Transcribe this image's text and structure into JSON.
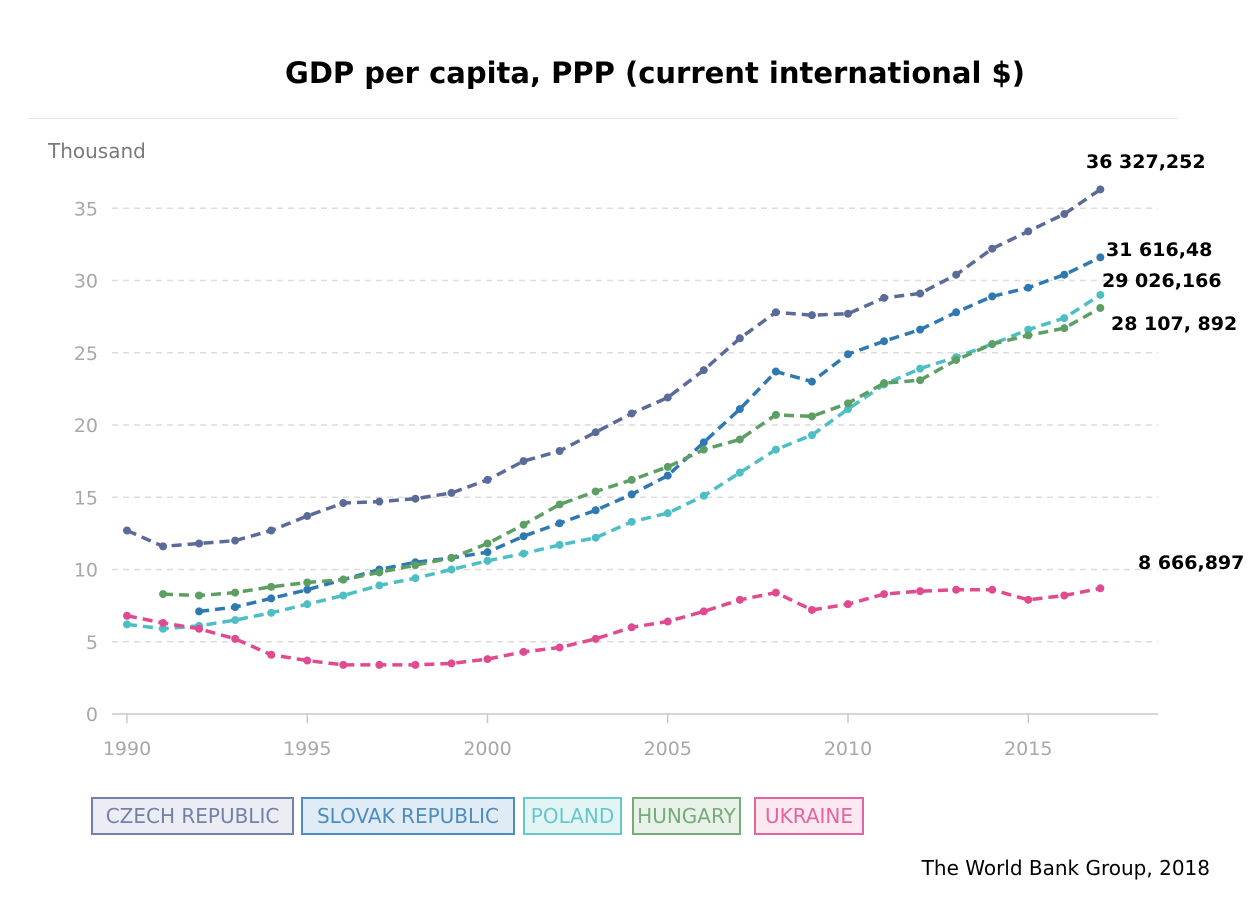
{
  "chart_data": {
    "type": "line",
    "title": "GDP per capita, PPP (current international $)",
    "ylabel": "Thousand",
    "xlabel": "",
    "ylim": [
      0,
      38
    ],
    "xlim": [
      1990,
      2018
    ],
    "y_ticks": [
      "0",
      "5",
      "10",
      "15",
      "20",
      "25",
      "30",
      "35"
    ],
    "x_ticks": [
      "1990",
      "1995",
      "2000",
      "2005",
      "2010",
      "2015"
    ],
    "grid": "horizontal dashed",
    "legend_position": "bottom-left",
    "source": "The World Bank Group, 2018",
    "series": [
      {
        "name": "CZECH REPUBLIC",
        "color": "#5b6b99",
        "start_year": 1990,
        "values": [
          12.7,
          11.6,
          11.8,
          12.0,
          12.7,
          13.7,
          14.6,
          14.7,
          14.9,
          15.3,
          16.2,
          17.5,
          18.2,
          19.5,
          20.8,
          21.9,
          23.8,
          26.0,
          27.8,
          27.6,
          27.7,
          28.8,
          29.1,
          30.4,
          32.2,
          33.4,
          34.6,
          36.3
        ],
        "end_label": "36 327,252"
      },
      {
        "name": "SLOVAK REPUBLIC",
        "color": "#2e79b2",
        "start_year": 1992,
        "values": [
          7.1,
          7.4,
          8.0,
          8.6,
          9.3,
          10.0,
          10.5,
          10.8,
          11.2,
          12.3,
          13.2,
          14.1,
          15.2,
          16.5,
          18.8,
          21.1,
          23.7,
          23.0,
          24.9,
          25.8,
          26.6,
          27.8,
          28.9,
          29.5,
          30.4,
          31.6
        ],
        "end_label": "31 616,48"
      },
      {
        "name": "POLAND",
        "color": "#4dbfc4",
        "start_year": 1990,
        "values": [
          6.2,
          5.9,
          6.1,
          6.5,
          7.0,
          7.6,
          8.2,
          8.9,
          9.4,
          10.0,
          10.6,
          11.1,
          11.7,
          12.2,
          13.3,
          13.9,
          15.1,
          16.7,
          18.3,
          19.3,
          21.1,
          22.8,
          23.9,
          24.7,
          25.6,
          26.6,
          27.4,
          29.0
        ],
        "end_label": "29 026,166"
      },
      {
        "name": "HUNGARY",
        "color": "#5d9e62",
        "start_year": 1991,
        "values": [
          8.3,
          8.2,
          8.4,
          8.8,
          9.1,
          9.3,
          9.8,
          10.3,
          10.8,
          11.8,
          13.1,
          14.5,
          15.4,
          16.2,
          17.1,
          18.3,
          19.0,
          20.7,
          20.6,
          21.5,
          22.9,
          23.1,
          24.5,
          25.6,
          26.2,
          26.7,
          28.1
        ],
        "end_label": "28 107, 892"
      },
      {
        "name": "UKRAINE",
        "color": "#e04a8f",
        "start_year": 1990,
        "values": [
          6.8,
          6.3,
          5.9,
          5.2,
          4.1,
          3.7,
          3.4,
          3.4,
          3.4,
          3.5,
          3.8,
          4.3,
          4.6,
          5.2,
          6.0,
          6.4,
          7.1,
          7.9,
          8.4,
          7.2,
          7.6,
          8.3,
          8.5,
          8.6,
          8.6,
          7.9,
          8.2,
          8.7
        ],
        "end_label": "8 666,897"
      }
    ]
  }
}
